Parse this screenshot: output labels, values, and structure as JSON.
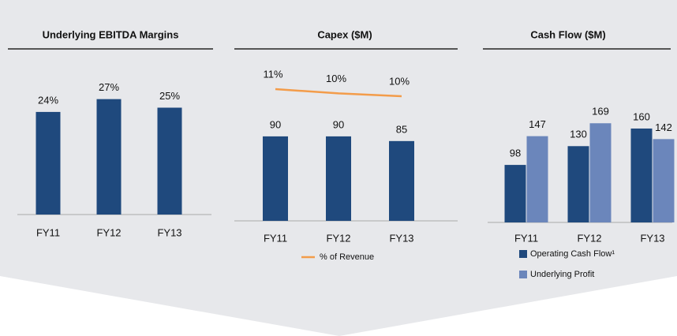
{
  "chart_data": [
    {
      "type": "bar",
      "title": "Underlying EBITDA Margins",
      "categories": [
        "FY11",
        "FY12",
        "FY13"
      ],
      "values": [
        24,
        27,
        25
      ],
      "value_labels": [
        "24%",
        "27%",
        "25%"
      ],
      "color": "#1f497d",
      "ylim": [
        0,
        30
      ]
    },
    {
      "type": "bar",
      "title": "Capex ($M)",
      "categories": [
        "FY11",
        "FY12",
        "FY13"
      ],
      "values": [
        90,
        90,
        85
      ],
      "color": "#1f497d",
      "ylim": [
        0,
        100
      ],
      "line": {
        "name": "% of Revenue",
        "color": "#f39c4a",
        "values": [
          11,
          10.4,
          10
        ],
        "value_labels": [
          "11%",
          "10%",
          "10%"
        ],
        "axis": "y2"
      },
      "y2lim": [
        8,
        12
      ]
    },
    {
      "type": "bar",
      "title": "Cash Flow ($M)",
      "categories": [
        "FY11",
        "FY12",
        "FY13"
      ],
      "ylim": [
        0,
        200
      ],
      "series": [
        {
          "name": "Operating Cash Flow¹",
          "color": "#1f497d",
          "values": [
            98,
            130,
            160
          ]
        },
        {
          "name": "Underlying Profit",
          "color": "#6b86bb",
          "values": [
            147,
            169,
            142
          ]
        }
      ]
    }
  ]
}
